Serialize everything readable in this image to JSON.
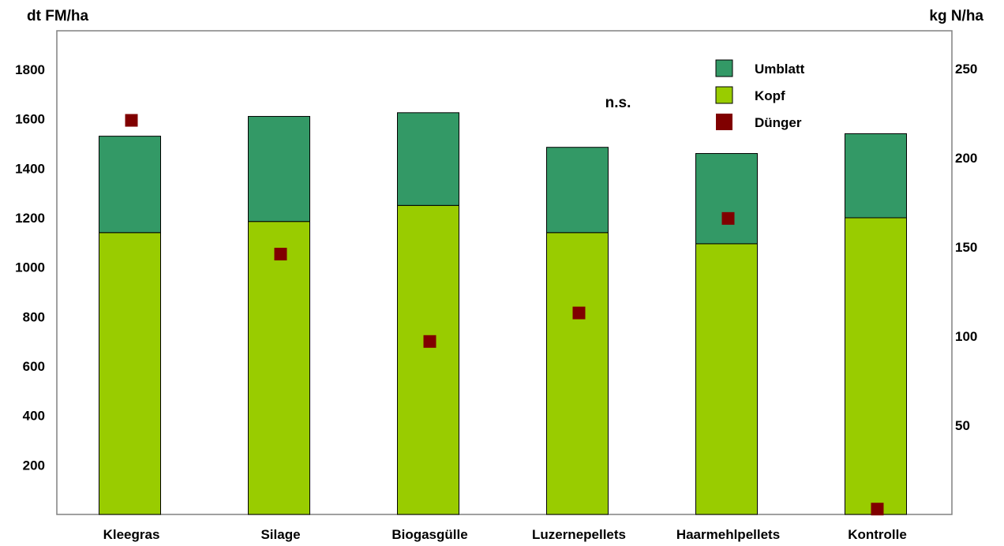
{
  "chart_data": {
    "type": "bar",
    "stacked": true,
    "categories": [
      "Kleegras",
      "Silage",
      "Biogasgülle",
      "Luzernepellets",
      "Haarmehlpellets",
      "Kontrolle"
    ],
    "series": [
      {
        "name": "Kopf",
        "axis": "left",
        "color": "#99cc00",
        "values": [
          1140,
          1185,
          1250,
          1140,
          1095,
          1200
        ]
      },
      {
        "name": "Umblatt",
        "axis": "left",
        "color": "#339966",
        "values": [
          390,
          425,
          375,
          345,
          365,
          340
        ]
      },
      {
        "name": "Dünger",
        "axis": "right",
        "kind": "marker",
        "color": "#800000",
        "values": [
          221,
          146,
          97,
          113,
          166,
          3
        ]
      }
    ],
    "ylabel": "dt FM/ha",
    "y2label": "kg N/ha",
    "ylim": [
      0,
      1800
    ],
    "y2lim": [
      0,
      250
    ],
    "yticks": [
      200,
      400,
      600,
      800,
      1000,
      1200,
      1400,
      1600,
      1800
    ],
    "y2ticks": [
      50,
      100,
      150,
      200,
      250
    ],
    "annotation": "n.s.",
    "legend_position": "top-right",
    "grid": false
  }
}
